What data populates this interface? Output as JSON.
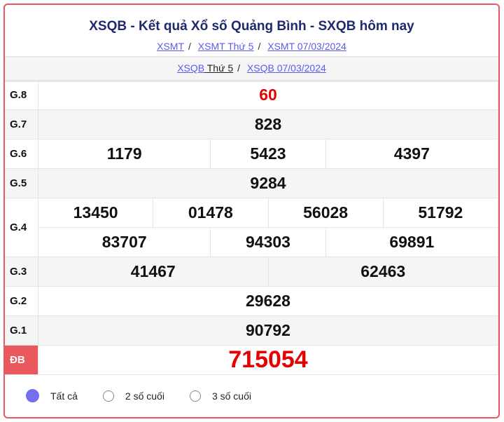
{
  "header": {
    "title": "XSQB - Kết quả Xổ số Quảng Bình - SXQB hôm nay",
    "links": [
      "XSMT",
      "XSMT Thứ 5",
      "XSMT 07/03/2024"
    ],
    "sub_link1": "XSQB",
    "sub_text": "Thứ 5",
    "sub_link2": "XSQB 07/03/2024"
  },
  "results": {
    "g8": {
      "label": "G.8",
      "values": [
        "60"
      ]
    },
    "g7": {
      "label": "G.7",
      "values": [
        "828"
      ]
    },
    "g6": {
      "label": "G.6",
      "values": [
        "1179",
        "5423",
        "4397"
      ]
    },
    "g5": {
      "label": "G.5",
      "values": [
        "9284"
      ]
    },
    "g4": {
      "label": "G.4",
      "values": [
        "13450",
        "01478",
        "56028",
        "51792",
        "83707",
        "94303",
        "69891"
      ]
    },
    "g3": {
      "label": "G.3",
      "values": [
        "41467",
        "62463"
      ]
    },
    "g2": {
      "label": "G.2",
      "values": [
        "29628"
      ]
    },
    "g1": {
      "label": "G.1",
      "values": [
        "90792"
      ]
    },
    "db": {
      "label": "ĐB",
      "values": [
        "715054"
      ]
    }
  },
  "options": [
    {
      "label": "Tất cả",
      "selected": true
    },
    {
      "label": "2 số cuối",
      "selected": false
    },
    {
      "label": "3 số cuối",
      "selected": false
    }
  ],
  "colors": {
    "accent": "#e8585c",
    "prize_red": "#e60000",
    "title": "#1f2a6e",
    "link": "#5b5bf0"
  }
}
